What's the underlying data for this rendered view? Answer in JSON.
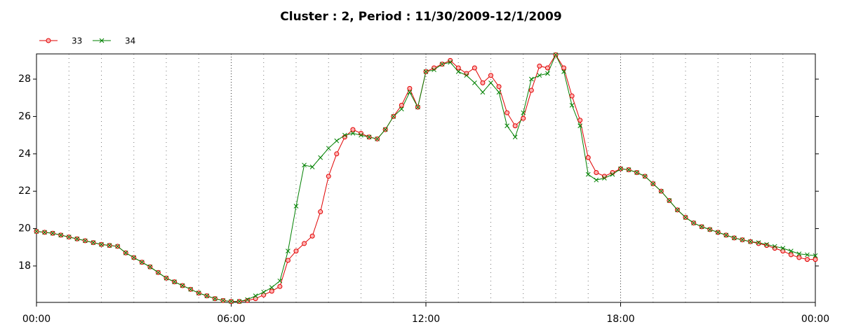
{
  "chart_data": {
    "type": "line",
    "title": "Cluster : 2, Period : 11/30/2009-12/1/2009",
    "x": [
      0,
      0.25,
      0.5,
      0.75,
      1,
      1.25,
      1.5,
      1.75,
      2,
      2.25,
      2.5,
      2.75,
      3,
      3.25,
      3.5,
      3.75,
      4,
      4.25,
      4.5,
      4.75,
      5,
      5.25,
      5.5,
      5.75,
      6,
      6.25,
      6.5,
      6.75,
      7,
      7.25,
      7.5,
      7.75,
      8,
      8.25,
      8.5,
      8.75,
      9,
      9.25,
      9.5,
      9.75,
      10,
      10.25,
      10.5,
      10.75,
      11,
      11.25,
      11.5,
      11.75,
      12,
      12.25,
      12.5,
      12.75,
      13,
      13.25,
      13.5,
      13.75,
      14,
      14.25,
      14.5,
      14.75,
      15,
      15.25,
      15.5,
      15.75,
      16,
      16.25,
      16.5,
      16.75,
      17,
      17.25,
      17.5,
      17.75,
      18,
      18.25,
      18.5,
      18.75,
      19,
      19.25,
      19.5,
      19.75,
      20,
      20.25,
      20.5,
      20.75,
      21,
      21.25,
      21.5,
      21.75,
      22,
      22.25,
      22.5,
      22.75,
      23,
      23.25,
      23.5,
      23.75,
      24
    ],
    "series": [
      {
        "name": "33",
        "color": "#e00000",
        "marker": "circle",
        "values": [
          19.85,
          19.8,
          19.75,
          19.65,
          19.55,
          19.45,
          19.35,
          19.25,
          19.15,
          19.1,
          19.05,
          18.7,
          18.45,
          18.2,
          17.95,
          17.65,
          17.35,
          17.15,
          16.95,
          16.75,
          16.55,
          16.4,
          16.25,
          16.15,
          16.1,
          16.1,
          16.15,
          16.25,
          16.45,
          16.65,
          16.9,
          18.3,
          18.8,
          19.2,
          19.6,
          20.9,
          22.8,
          24.0,
          24.9,
          25.3,
          25.1,
          24.9,
          24.8,
          25.3,
          26.0,
          26.6,
          27.5,
          26.5,
          28.4,
          28.6,
          28.8,
          29.0,
          28.6,
          28.3,
          28.6,
          27.8,
          28.2,
          27.6,
          26.2,
          25.5,
          25.9,
          27.4,
          28.7,
          28.6,
          29.3,
          28.6,
          27.1,
          25.8,
          23.8,
          23.0,
          22.8,
          23.0,
          23.2,
          23.15,
          23.0,
          22.8,
          22.4,
          22.0,
          21.5,
          21.0,
          20.6,
          20.3,
          20.1,
          19.95,
          19.8,
          19.65,
          19.5,
          19.4,
          19.3,
          19.2,
          19.1,
          18.95,
          18.8,
          18.6,
          18.45,
          18.35,
          18.35
        ]
      },
      {
        "name": "34",
        "color": "#008000",
        "marker": "cross",
        "values": [
          19.85,
          19.8,
          19.75,
          19.65,
          19.55,
          19.45,
          19.35,
          19.25,
          19.15,
          19.1,
          19.05,
          18.7,
          18.45,
          18.2,
          17.95,
          17.65,
          17.35,
          17.15,
          16.95,
          16.75,
          16.55,
          16.4,
          16.25,
          16.15,
          16.1,
          16.1,
          16.2,
          16.4,
          16.6,
          16.85,
          17.2,
          18.8,
          21.2,
          23.4,
          23.3,
          23.8,
          24.3,
          24.7,
          25.0,
          25.1,
          25.0,
          24.9,
          24.8,
          25.3,
          26.0,
          26.4,
          27.3,
          26.5,
          28.4,
          28.5,
          28.8,
          28.9,
          28.4,
          28.2,
          27.8,
          27.3,
          27.8,
          27.3,
          25.5,
          24.9,
          26.2,
          28.0,
          28.2,
          28.3,
          29.3,
          28.4,
          26.6,
          25.5,
          22.9,
          22.6,
          22.7,
          22.9,
          23.2,
          23.15,
          23.0,
          22.8,
          22.4,
          22.0,
          21.5,
          21.0,
          20.6,
          20.3,
          20.1,
          19.95,
          19.8,
          19.65,
          19.5,
          19.4,
          19.3,
          19.25,
          19.15,
          19.05,
          18.95,
          18.8,
          18.65,
          18.6,
          18.55
        ]
      }
    ],
    "xlim": [
      0,
      24
    ],
    "xticks": [
      {
        "value": 0,
        "label": "00:00"
      },
      {
        "value": 6,
        "label": "06:00"
      },
      {
        "value": 12,
        "label": "12:00"
      },
      {
        "value": 18,
        "label": "18:00"
      },
      {
        "value": 24,
        "label": "00:00"
      }
    ],
    "x_minor_ticks": [
      1,
      2,
      3,
      4,
      5,
      7,
      8,
      9,
      10,
      11,
      13,
      14,
      15,
      16,
      17,
      19,
      20,
      21,
      22,
      23
    ],
    "ylim": [
      16.05,
      29.35
    ],
    "yticks": [
      18,
      20,
      22,
      24,
      26,
      28
    ],
    "grid": true,
    "legend": "top-left"
  }
}
